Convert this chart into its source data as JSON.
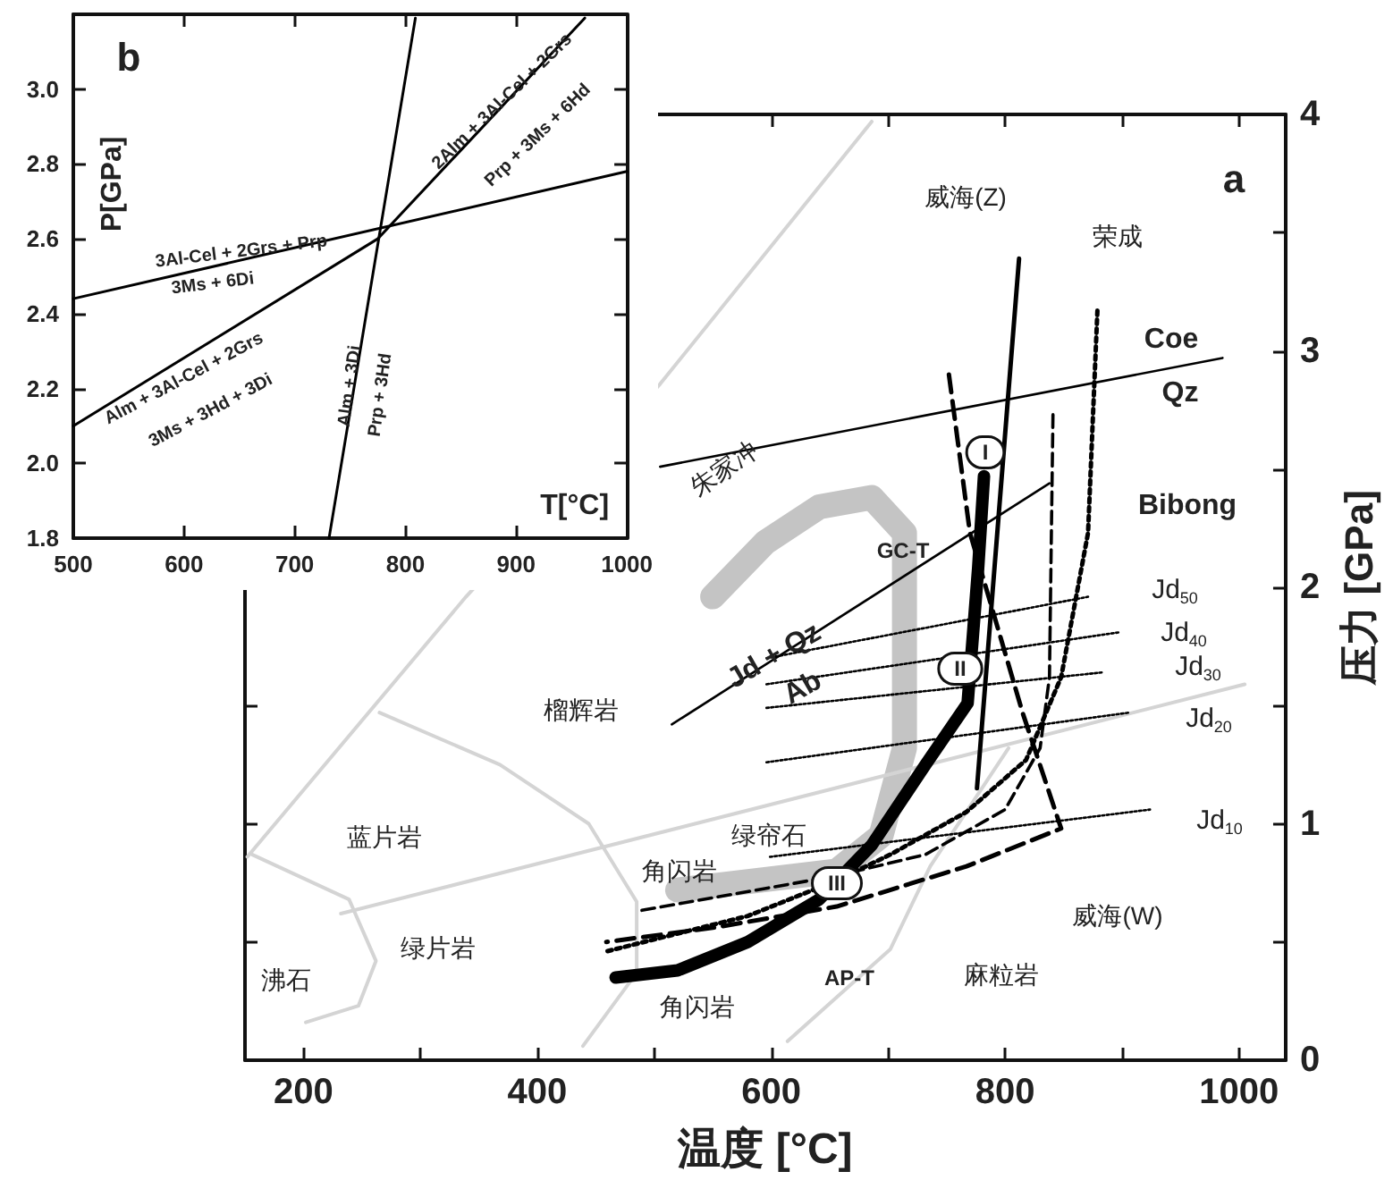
{
  "chart_data": [
    {
      "type": "line",
      "xlabel": "T[°C]",
      "ylabel": "P[GPa]",
      "xlim": [
        500,
        1000
      ],
      "ylim": [
        1.8,
        3.2
      ],
      "xticks": [
        500,
        600,
        700,
        800,
        900,
        1000
      ],
      "yticks": [
        1.8,
        {
          "value": 2,
          "label": "2.0"
        },
        2.2,
        2.4,
        2.6,
        2.8,
        {
          "value": 3,
          "label": "3.0"
        }
      ],
      "marker": "none",
      "series": [
        {
          "color": "#000000",
          "line_style": "solid",
          "x": [
            500,
            1000
          ],
          "values": [
            2.44,
            2.78
          ]
        },
        {
          "color": "#000000",
          "line_style": "solid",
          "x": [
            500,
            775,
            962
          ],
          "values": [
            2.1,
            2.6,
            3.19
          ]
        },
        {
          "color": "#000000",
          "line_style": "solid",
          "x": [
            731,
            809
          ],
          "values": [
            1.8,
            3.19
          ]
        }
      ],
      "annotations": [
        "b",
        "3Al-Cel + 2Grs + Prp",
        "3Ms + 6Di",
        "Alm + 3Al-Cel + 2Grs",
        "3Ms + 3Hd + 3Di",
        "2Alm + 3Al-Cel + 2Grs",
        "Prp + 3Ms + 6Hd",
        "Alm + 3Di",
        "Prp + 3Hd"
      ]
    },
    {
      "type": "line",
      "xlabel": "温度 [°C]",
      "ylabel": "压力 [GPa]",
      "xlim": [
        150,
        1040
      ],
      "ylim": [
        0,
        4
      ],
      "xticks": [
        200,
        {
          "value": 300,
          "label": null
        },
        400,
        {
          "value": 500,
          "label": null
        },
        600,
        {
          "value": 700,
          "label": null
        },
        800,
        {
          "value": 900,
          "label": null
        },
        1000
      ],
      "yticks": [
        0,
        {
          "value": 0.5,
          "label": null
        },
        1,
        {
          "value": 1.5,
          "label": null
        },
        2,
        {
          "value": 2.5,
          "label": null
        },
        3,
        {
          "value": 3.5,
          "label": null
        },
        4
      ],
      "marker": "none",
      "series": [
        {
          "color": "#c4c4c4",
          "line_style": "solid",
          "x": [
            550,
            595,
            641,
            686,
            714,
            714,
            694,
            656,
            520
          ],
          "values": [
            1.96,
            2.19,
            2.34,
            2.38,
            2.23,
            1.32,
            0.95,
            0.8,
            0.72
          ]
        },
        {
          "color": "#d4d4d4",
          "line_style": "solid",
          "x": [
            152,
            339,
            505,
            686
          ],
          "values": [
            0.86,
            1.96,
            2.86,
            3.97
          ]
        },
        {
          "color": "#d4d4d4",
          "line_style": "solid",
          "x": [
            156,
            239,
            262,
            247,
            202
          ],
          "values": [
            0.87,
            0.68,
            0.42,
            0.23,
            0.16
          ]
        },
        {
          "color": "#d4d4d4",
          "line_style": "solid",
          "x": [
            265,
            368,
            444,
            485,
            485,
            439
          ],
          "values": [
            1.47,
            1.25,
            1.0,
            0.67,
            0.37,
            0.06
          ]
        },
        {
          "color": "#d4d4d4",
          "line_style": "solid",
          "x": [
            232,
            1005
          ],
          "values": [
            0.62,
            1.59
          ]
        },
        {
          "color": "#d4d4d4",
          "line_style": "solid",
          "x": [
            614,
            702,
            736,
            803
          ],
          "values": [
            0.08,
            0.47,
            0.82,
            1.32
          ]
        },
        {
          "color": "#000000",
          "line_style": "solid",
          "x": [
            505,
            986
          ],
          "values": [
            2.51,
            2.97
          ]
        },
        {
          "color": "#000000",
          "line_style": "solid",
          "x": [
            515,
            838
          ],
          "values": [
            1.42,
            2.44
          ]
        },
        {
          "color": "#000000",
          "line_style": "dotted",
          "x": [
            596,
            871
          ],
          "values": [
            1.7,
            1.96
          ]
        },
        {
          "color": "#000000",
          "line_style": "dotted",
          "x": [
            596,
            898
          ],
          "values": [
            1.59,
            1.81
          ]
        },
        {
          "color": "#000000",
          "line_style": "dotted",
          "x": [
            596,
            883
          ],
          "values": [
            1.49,
            1.64
          ]
        },
        {
          "color": "#000000",
          "line_style": "dotted",
          "x": [
            596,
            906
          ],
          "values": [
            1.26,
            1.47
          ]
        },
        {
          "color": "#000000",
          "line_style": "dotted",
          "x": [
            599,
            924
          ],
          "values": [
            0.86,
            1.06
          ]
        },
        {
          "color": "#000000",
          "line_style": "solid",
          "x": [
            782,
            777,
            768,
            732,
            686,
            641,
            580,
            520,
            467
          ],
          "values": [
            2.47,
            2.08,
            1.51,
            1.25,
            0.91,
            0.68,
            0.5,
            0.38,
            0.35
          ]
        },
        {
          "color": "#000000",
          "line_style": "solid",
          "x": [
            812,
            776
          ],
          "values": [
            3.39,
            1.15
          ]
        },
        {
          "color": "#000000",
          "line_style": "dotted",
          "x": [
            879,
            871,
            848,
            818,
            767,
            702,
            656,
            580,
            459
          ],
          "values": [
            3.17,
            2.23,
            1.62,
            1.27,
            1.05,
            0.87,
            0.76,
            0.61,
            0.46
          ]
        },
        {
          "color": "#000000",
          "line_style": "dashed",
          "x": [
            752,
            770,
            815,
            848,
            767,
            656,
            550,
            459
          ],
          "values": [
            2.9,
            2.23,
            1.47,
            0.98,
            0.82,
            0.65,
            0.56,
            0.5
          ]
        },
        {
          "color": "#000000",
          "line_style": "dashed",
          "x": [
            841,
            838,
            830,
            800,
            732,
            656,
            485
          ],
          "values": [
            2.73,
            1.62,
            1.32,
            1.06,
            0.87,
            0.78,
            0.63
          ]
        }
      ],
      "annotations": [
        "a",
        "威海(Z)",
        "荣成",
        "Coe",
        "Qz",
        "Bibong",
        "朱家冲",
        "GC-T",
        "Jd + Qz",
        "Ab",
        "Jd$_{50}$",
        "Jd$_{40}$",
        "Jd$_{30}$",
        "Jd$_{20}$",
        "Jd$_{10}$",
        "I",
        "II",
        "III",
        "榴辉岩",
        "蓝片岩",
        "绿帘石",
        "角闪岩",
        "绿片岩",
        "沸石",
        "角闪岩",
        "AP-T",
        "麻粒岩",
        "威海(W)"
      ]
    }
  ]
}
